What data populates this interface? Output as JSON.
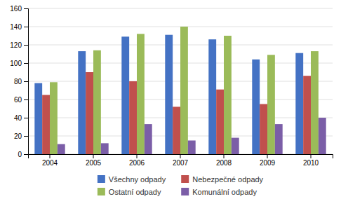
{
  "chart_data": {
    "type": "bar",
    "categories": [
      "2004",
      "2005",
      "2006",
      "2007",
      "2008",
      "2009",
      "2010"
    ],
    "series": [
      {
        "name": "Všechny odpady",
        "color": "#4472C4",
        "values": [
          78,
          113,
          129,
          131,
          126,
          104,
          111
        ]
      },
      {
        "name": "Nebezpečné odpady",
        "color": "#C0504D",
        "values": [
          65,
          90,
          80,
          52,
          71,
          55,
          86
        ]
      },
      {
        "name": "Ostatní odpady",
        "color": "#9BBB59",
        "values": [
          79,
          114,
          132,
          140,
          130,
          109,
          113
        ]
      },
      {
        "name": "Komunální odpady",
        "color": "#7B5EA7",
        "values": [
          11,
          12,
          33,
          15,
          18,
          33,
          40
        ]
      }
    ],
    "ylim": [
      0,
      160
    ],
    "yticks": [
      0,
      20,
      40,
      60,
      80,
      100,
      120,
      140,
      160
    ],
    "grid": true,
    "legend": "bottom"
  }
}
